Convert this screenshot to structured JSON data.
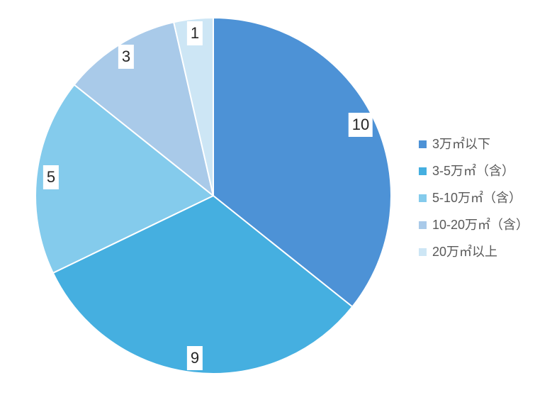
{
  "chart_data": {
    "type": "pie",
    "title": "",
    "categories": [
      "3万㎡以下",
      "3-5万㎡（含）",
      "5-10万㎡（含）",
      "10-20万㎡（含）",
      "20万㎡以上"
    ],
    "values": [
      10,
      9,
      5,
      3,
      1
    ],
    "data_labels": [
      "10",
      "9",
      "5",
      "3",
      "1"
    ],
    "colors": [
      "#4D92D6",
      "#45AFE0",
      "#84CBEC",
      "#A9CAE9",
      "#CDE6F5"
    ],
    "start_angle_deg": 0,
    "direction": "clockwise",
    "slice_border_color": "#FFFFFF",
    "label_text_color": "#262626",
    "label_background_color": "#FFFFFF",
    "legend_position": "right",
    "legend_text_color": "#595959",
    "background_color": "#FFFFFF",
    "grid": false
  }
}
